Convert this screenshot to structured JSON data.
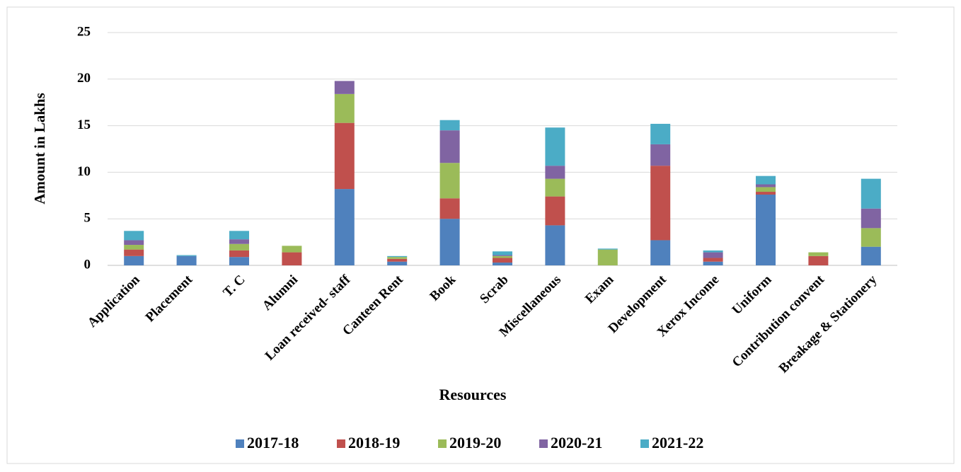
{
  "chart_data": {
    "type": "stacked_bar",
    "x_label": "Resources",
    "y_label": "Amount in Lakhs",
    "categories": [
      "Application",
      "Placement",
      "T. C",
      "Alumni",
      "Loan received- staff",
      "Canteen Rent",
      "Book",
      "Scrab",
      "Miscellaneous",
      "Exam",
      "Development",
      "Xerox Income",
      "Uniform",
      "Contribution convent",
      "Breakage & Stationery"
    ],
    "series": [
      {
        "name": "2017-18",
        "color": "#4f81bd",
        "values": [
          1.0,
          1.0,
          0.9,
          0,
          8.2,
          0.4,
          5.0,
          0.3,
          4.3,
          0,
          2.7,
          0.4,
          7.6,
          0,
          2.0
        ]
      },
      {
        "name": "2018-19",
        "color": "#c0504d",
        "values": [
          0.7,
          0,
          0.7,
          1.4,
          7.1,
          0.3,
          2.2,
          0.5,
          3.1,
          0,
          8.0,
          0.4,
          0.3,
          1.0,
          0
        ]
      },
      {
        "name": "2019-20",
        "color": "#9bbb59",
        "values": [
          0.5,
          0,
          0.7,
          0.7,
          3.1,
          0.2,
          3.8,
          0.2,
          1.9,
          1.7,
          0,
          0,
          0.5,
          0.4,
          2.0
        ]
      },
      {
        "name": "2020-21",
        "color": "#8064a2",
        "values": [
          0.5,
          0,
          0.5,
          0,
          1.4,
          0,
          3.5,
          0.1,
          1.4,
          0,
          2.3,
          0.6,
          0.3,
          0,
          2.1
        ]
      },
      {
        "name": "2021-22",
        "color": "#4bacc6",
        "values": [
          1.0,
          0.1,
          0.9,
          0,
          0,
          0.1,
          1.1,
          0.4,
          4.1,
          0.1,
          2.2,
          0.2,
          0.9,
          0,
          3.2
        ]
      }
    ],
    "ylim": [
      0,
      25
    ],
    "yticks": [
      0,
      5,
      10,
      15,
      20,
      25
    ],
    "grid": true,
    "legend": "bottom"
  }
}
